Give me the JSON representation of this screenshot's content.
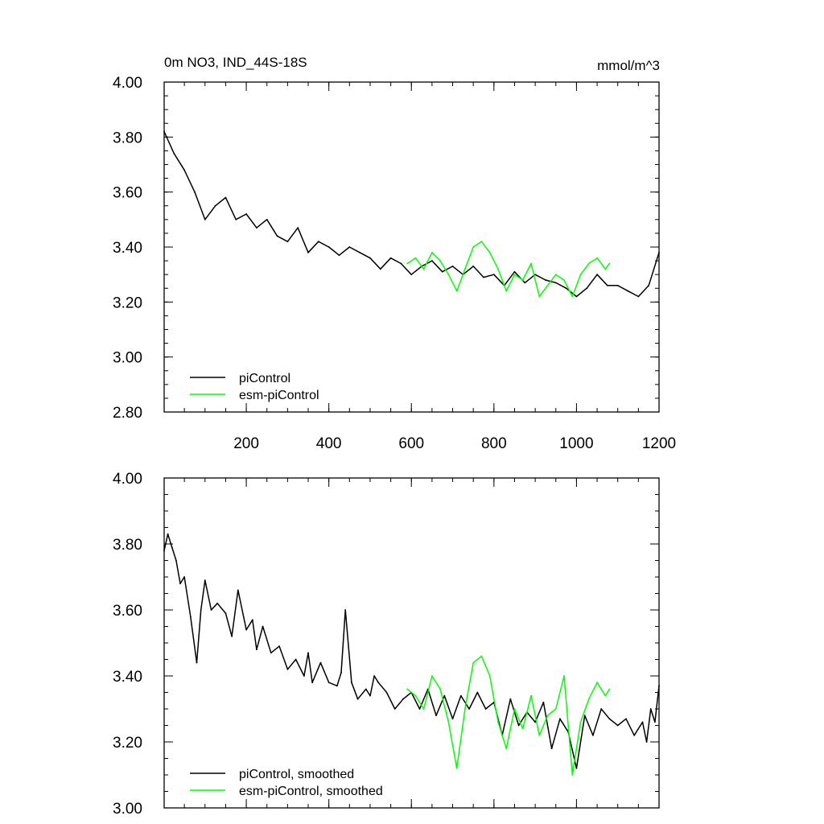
{
  "colors": {
    "black": "#000000",
    "green": "#00ff00",
    "background": "#ffffff"
  },
  "chart_data": [
    {
      "type": "line",
      "title": "0m NO3, IND_44S-18S",
      "units": "mmol/m^3",
      "xlim": [
        1,
        1200
      ],
      "ylim": [
        2.8,
        4.0
      ],
      "x_ticks": [
        200,
        400,
        600,
        800,
        1000,
        1200
      ],
      "x_tick_labels": [
        "200",
        "400",
        "600",
        "800",
        "1000",
        "1200"
      ],
      "y_ticks": [
        2.8,
        3.0,
        3.2,
        3.4,
        3.6,
        3.8,
        4.0
      ],
      "y_tick_labels": [
        "2.80",
        "3.00",
        "3.20",
        "3.40",
        "3.60",
        "3.80",
        "4.00"
      ],
      "legend_position": "bottom-left",
      "series": [
        {
          "name": "piControl",
          "color": "#000000",
          "x": [
            1,
            25,
            50,
            75,
            100,
            125,
            150,
            175,
            200,
            225,
            250,
            275,
            300,
            325,
            350,
            375,
            400,
            425,
            450,
            475,
            500,
            525,
            550,
            575,
            600,
            625,
            650,
            675,
            700,
            725,
            750,
            775,
            800,
            825,
            850,
            875,
            900,
            925,
            950,
            975,
            1000,
            1025,
            1050,
            1075,
            1100,
            1125,
            1150,
            1175,
            1200
          ],
          "values": [
            3.82,
            3.74,
            3.68,
            3.6,
            3.5,
            3.55,
            3.58,
            3.5,
            3.52,
            3.47,
            3.5,
            3.44,
            3.42,
            3.47,
            3.38,
            3.42,
            3.4,
            3.37,
            3.4,
            3.38,
            3.36,
            3.32,
            3.36,
            3.34,
            3.3,
            3.33,
            3.35,
            3.31,
            3.33,
            3.3,
            3.33,
            3.29,
            3.3,
            3.26,
            3.31,
            3.27,
            3.3,
            3.28,
            3.27,
            3.25,
            3.22,
            3.25,
            3.3,
            3.26,
            3.26,
            3.24,
            3.22,
            3.26,
            3.38
          ]
        },
        {
          "name": "esm-piControl",
          "color": "#00ff00",
          "x": [
            590,
            610,
            630,
            650,
            670,
            690,
            710,
            730,
            750,
            770,
            790,
            810,
            830,
            850,
            870,
            890,
            910,
            930,
            950,
            970,
            990,
            1010,
            1030,
            1050,
            1070,
            1080
          ],
          "values": [
            3.34,
            3.36,
            3.32,
            3.38,
            3.35,
            3.3,
            3.24,
            3.32,
            3.4,
            3.42,
            3.38,
            3.32,
            3.24,
            3.3,
            3.28,
            3.34,
            3.22,
            3.26,
            3.3,
            3.28,
            3.22,
            3.3,
            3.34,
            3.36,
            3.32,
            3.34
          ]
        }
      ]
    },
    {
      "type": "line",
      "xlim": [
        1,
        1200
      ],
      "ylim": [
        3.0,
        4.0
      ],
      "x_ticks": [
        200,
        400,
        600,
        800,
        1000,
        1200
      ],
      "y_ticks": [
        3.0,
        3.2,
        3.4,
        3.6,
        3.8,
        4.0
      ],
      "y_tick_labels": [
        "3.00",
        "3.20",
        "3.40",
        "3.60",
        "3.80",
        "4.00"
      ],
      "legend_position": "bottom-left",
      "series": [
        {
          "name": "piControl, smoothed",
          "color": "#000000",
          "x": [
            1,
            10,
            20,
            30,
            40,
            50,
            65,
            80,
            90,
            100,
            115,
            130,
            150,
            165,
            180,
            200,
            215,
            225,
            240,
            260,
            280,
            300,
            320,
            340,
            350,
            360,
            380,
            400,
            420,
            430,
            440,
            455,
            470,
            490,
            500,
            510,
            520,
            540,
            560,
            580,
            600,
            620,
            640,
            660,
            680,
            700,
            720,
            740,
            760,
            780,
            800,
            820,
            840,
            860,
            880,
            900,
            920,
            940,
            960,
            980,
            1000,
            1020,
            1040,
            1060,
            1080,
            1100,
            1120,
            1140,
            1160,
            1170,
            1180,
            1190,
            1200
          ],
          "values": [
            3.78,
            3.83,
            3.79,
            3.75,
            3.68,
            3.7,
            3.58,
            3.44,
            3.6,
            3.69,
            3.6,
            3.62,
            3.59,
            3.52,
            3.66,
            3.54,
            3.57,
            3.48,
            3.55,
            3.47,
            3.49,
            3.42,
            3.45,
            3.4,
            3.47,
            3.38,
            3.44,
            3.38,
            3.37,
            3.41,
            3.6,
            3.38,
            3.33,
            3.36,
            3.34,
            3.4,
            3.38,
            3.35,
            3.3,
            3.33,
            3.35,
            3.3,
            3.36,
            3.28,
            3.34,
            3.27,
            3.34,
            3.3,
            3.35,
            3.3,
            3.32,
            3.22,
            3.33,
            3.25,
            3.29,
            3.26,
            3.32,
            3.18,
            3.27,
            3.23,
            3.12,
            3.28,
            3.22,
            3.3,
            3.27,
            3.25,
            3.27,
            3.22,
            3.26,
            3.2,
            3.3,
            3.26,
            3.37
          ]
        },
        {
          "name": "esm-piControl, smoothed",
          "color": "#00ff00",
          "x": [
            590,
            610,
            630,
            650,
            670,
            690,
            710,
            730,
            750,
            770,
            790,
            810,
            830,
            850,
            870,
            890,
            910,
            930,
            950,
            970,
            990,
            1010,
            1030,
            1050,
            1070,
            1080
          ],
          "values": [
            3.36,
            3.34,
            3.3,
            3.4,
            3.36,
            3.26,
            3.12,
            3.3,
            3.44,
            3.46,
            3.4,
            3.26,
            3.18,
            3.3,
            3.24,
            3.34,
            3.22,
            3.28,
            3.3,
            3.4,
            3.1,
            3.26,
            3.33,
            3.38,
            3.34,
            3.36
          ]
        }
      ]
    }
  ]
}
